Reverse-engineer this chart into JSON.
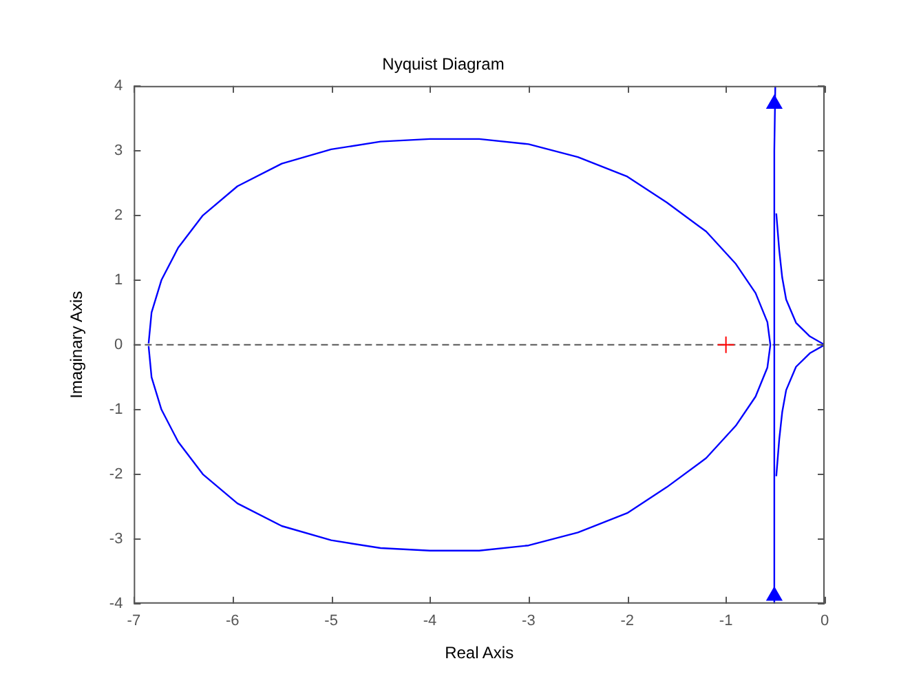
{
  "chart_data": {
    "type": "line",
    "title": "Nyquist Diagram",
    "xlabel": "Real Axis",
    "ylabel": "Imaginary Axis",
    "xlim": [
      -7,
      0
    ],
    "xticks": [
      -7,
      -6,
      -5,
      -4,
      -3,
      -2,
      -1,
      0
    ],
    "ylim": [
      -4,
      4
    ],
    "yticks": [
      -4,
      -3,
      -2,
      -1,
      0,
      1,
      2,
      3,
      4
    ],
    "grid": false,
    "legend": false,
    "marker": "none",
    "line_style": "solid",
    "series": [
      {
        "color": "#0000ff",
        "x": [
          -6.85,
          -6.82,
          -6.72,
          -6.55,
          -6.3,
          -5.95,
          -5.5,
          -5.0,
          -4.5,
          -4.0,
          -3.5,
          -3.0,
          -2.5,
          -2.0,
          -1.6,
          -1.2,
          -0.9,
          -0.7,
          -0.58,
          -0.55,
          -0.58,
          -0.7,
          -0.9,
          -1.2,
          -1.6,
          -2.0,
          -2.5,
          -3.0,
          -3.5,
          -4.0,
          -4.5,
          -5.0,
          -5.5,
          -5.95,
          -6.3,
          -6.55,
          -6.72,
          -6.82,
          -6.85
        ],
        "values": [
          0.02,
          0.5,
          1.0,
          1.5,
          2.0,
          2.45,
          2.8,
          3.02,
          3.14,
          3.18,
          3.18,
          3.1,
          2.9,
          2.6,
          2.2,
          1.75,
          1.25,
          0.8,
          0.35,
          0,
          -0.35,
          -0.8,
          -1.25,
          -1.75,
          -2.2,
          -2.6,
          -2.9,
          -3.1,
          -3.18,
          -3.18,
          -3.14,
          -3.02,
          -2.8,
          -2.45,
          -2.0,
          -1.5,
          -1.0,
          -0.5,
          -0.02
        ]
      },
      {
        "color": "#0001ff",
        "x": [
          -0.5,
          -0.51,
          -0.51,
          -0.51
        ],
        "values": [
          4,
          3,
          -3,
          -4
        ]
      },
      {
        "color": "#0100ff",
        "x": [
          0,
          -0.15,
          -0.29,
          -0.39,
          -0.43,
          -0.46,
          -0.49
        ],
        "values": [
          0,
          0.13,
          0.34,
          0.7,
          1.04,
          1.46,
          2.03
        ]
      },
      {
        "color": "#0000fd",
        "x": [
          0,
          -0.15,
          -0.29,
          -0.39,
          -0.43,
          -0.46,
          -0.49
        ],
        "values": [
          0,
          -0.13,
          -0.34,
          -0.7,
          -1.04,
          -1.46,
          -2.03
        ]
      },
      {
        "type": "scatter",
        "marker": "triangle",
        "color": "#0000ff",
        "x": [
          -0.51,
          -0.51
        ],
        "values": [
          3.72,
          -3.88
        ]
      },
      {
        "type": "scatter",
        "marker": "cross",
        "color": "#ff0000",
        "x": [
          -1
        ],
        "values": [
          0
        ]
      }
    ],
    "ref_lines": [
      {
        "axis": "y",
        "value": 0,
        "color": "#555555",
        "line_style": "dashed"
      }
    ]
  }
}
